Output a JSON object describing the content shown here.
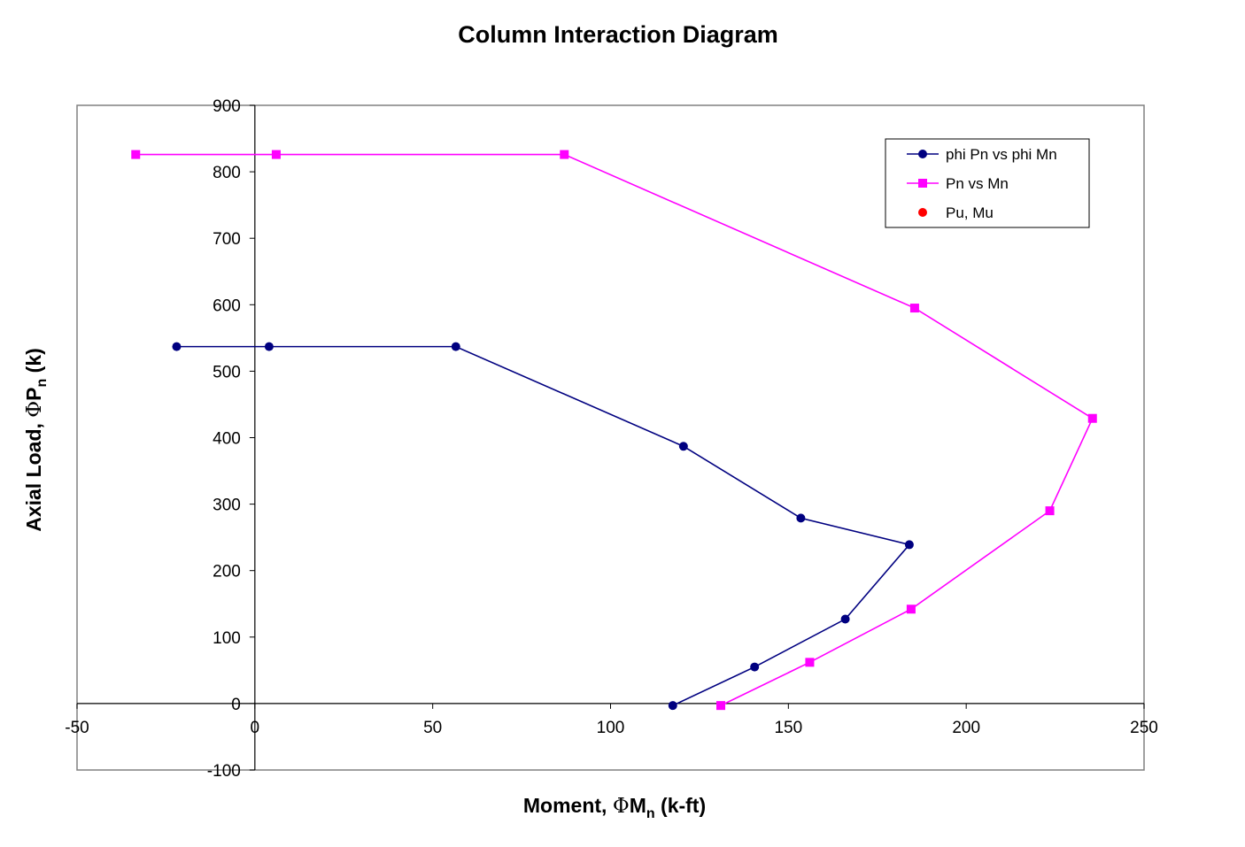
{
  "chart_data": {
    "type": "scatter",
    "title": "Column Interaction Diagram",
    "xlabel": {
      "prefix": "Moment,  ",
      "symbol": "Φ",
      "main": "M",
      "sub": "n",
      "suffix": " (k-ft)"
    },
    "ylabel": {
      "prefix": "Axial Load, ",
      "symbol": "Φ",
      "main": "P",
      "sub": "n",
      "suffix": " (k)"
    },
    "xlim": [
      -50,
      250
    ],
    "ylim": [
      -100,
      900
    ],
    "x_ticks": [
      -50,
      0,
      50,
      100,
      150,
      200,
      250
    ],
    "y_ticks": [
      -100,
      0,
      100,
      200,
      300,
      400,
      500,
      600,
      700,
      800,
      900
    ],
    "grid": false,
    "legend_position": "top-right",
    "series": [
      {
        "name": "phi Pn vs phi Mn",
        "color": "#000080",
        "marker": "circle",
        "line": true,
        "points": [
          [
            -22,
            537
          ],
          [
            4,
            537
          ],
          [
            56.5,
            537
          ],
          [
            120.5,
            387
          ],
          [
            153.5,
            279
          ],
          [
            184,
            239
          ],
          [
            166,
            127
          ],
          [
            140.5,
            55
          ],
          [
            117.5,
            -3
          ]
        ]
      },
      {
        "name": "Pn vs Mn",
        "color": "#ff00ff",
        "marker": "square",
        "line": true,
        "points": [
          [
            -33.5,
            826
          ],
          [
            6,
            826
          ],
          [
            87,
            826
          ],
          [
            185.5,
            595
          ],
          [
            235.5,
            429
          ],
          [
            223.5,
            290
          ],
          [
            184.5,
            142
          ],
          [
            156,
            62
          ],
          [
            131,
            -3
          ]
        ]
      },
      {
        "name": "Pu, Mu",
        "color": "#ff0000",
        "marker": "circle",
        "line": false,
        "points": []
      }
    ]
  }
}
